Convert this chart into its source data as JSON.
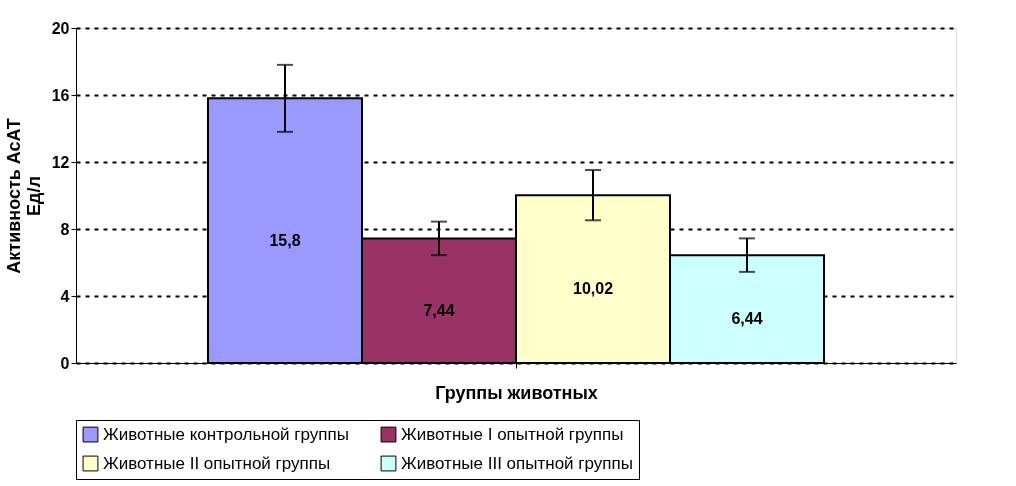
{
  "chart_data": {
    "type": "bar",
    "xlabel": "Группы животных",
    "ylabel": "Активность АсАТ\nЕд/л",
    "categories": [
      null
    ],
    "series": [
      {
        "name": "Животные контрольной группы",
        "color": "#9999ff",
        "values": [
          15.8
        ],
        "errors": [
          2
        ],
        "value_labels": [
          "15,8"
        ]
      },
      {
        "name": "Животные I опытной группы",
        "color": "#993366",
        "values": [
          7.44
        ],
        "errors": [
          1
        ],
        "value_labels": [
          "7,44"
        ]
      },
      {
        "name": "Животные II опытной группы",
        "color": "#ffffcc",
        "values": [
          10.02
        ],
        "errors": [
          1.5
        ],
        "value_labels": [
          "10,02"
        ]
      },
      {
        "name": "Животные III опытной группы",
        "color": "#ccffff",
        "values": [
          6.44
        ],
        "errors": [
          1
        ],
        "value_labels": [
          "6,44"
        ]
      }
    ],
    "ylim": [
      0,
      20
    ],
    "yticks": [
      0,
      4,
      8,
      12,
      16,
      20
    ],
    "grid": "y",
    "legend": "bottom"
  }
}
